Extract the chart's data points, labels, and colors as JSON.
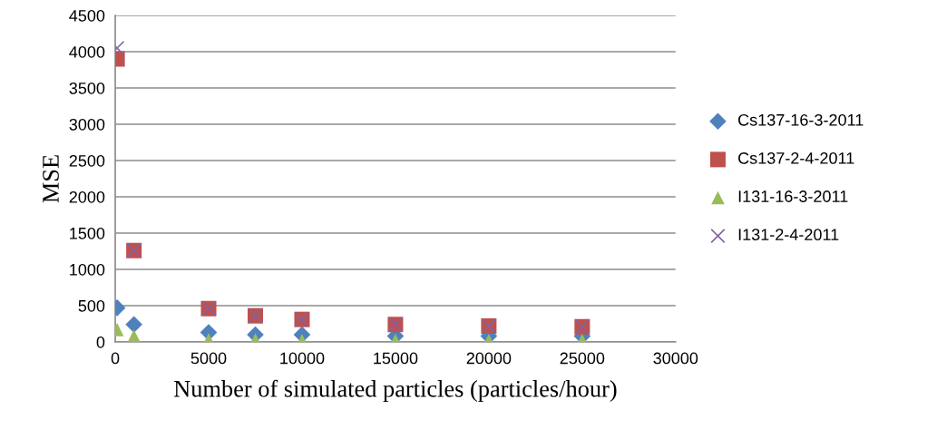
{
  "chart_data": {
    "type": "scatter",
    "xlabel": "Number of simulated particles (particles/hour)",
    "ylabel": "MSE",
    "x": [
      100,
      1000,
      5000,
      7500,
      10000,
      15000,
      20000,
      25000
    ],
    "xlim": [
      0,
      30000
    ],
    "xticks": [
      0,
      5000,
      10000,
      15000,
      20000,
      25000,
      30000
    ],
    "ylim": [
      0,
      4500
    ],
    "yticks": [
      0,
      500,
      1000,
      1500,
      2000,
      2500,
      3000,
      3500,
      4000,
      4500
    ],
    "grid": "y",
    "legend": "right",
    "series": [
      {
        "name": "Cs137-16-3-2011",
        "color": "#4f81bd",
        "marker": "diamond",
        "values": [
          470,
          240,
          130,
          100,
          100,
          80,
          80,
          80
        ]
      },
      {
        "name": "Cs137-2-4-2011",
        "color": "#c0504d",
        "marker": "square",
        "values": [
          3900,
          1260,
          460,
          360,
          310,
          240,
          220,
          210
        ]
      },
      {
        "name": "I131-16-3-2011",
        "color": "#9bbb59",
        "marker": "triangle",
        "values": [
          170,
          80,
          30,
          30,
          20,
          20,
          20,
          20
        ]
      },
      {
        "name": "I131-2-4-2011",
        "color": "#8064a2",
        "marker": "cross",
        "values": [
          4050,
          1260,
          460,
          360,
          310,
          240,
          220,
          210
        ]
      }
    ]
  }
}
